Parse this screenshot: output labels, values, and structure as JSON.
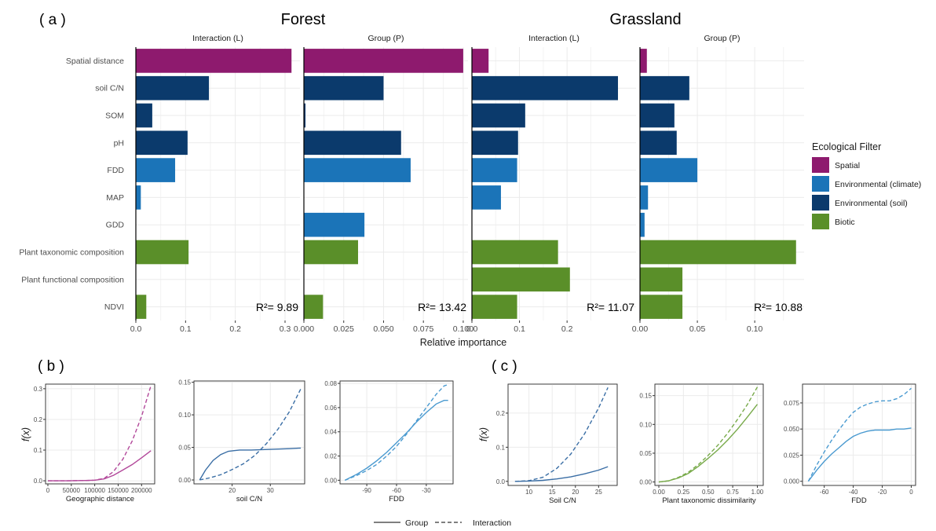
{
  "panel_a_label": "( a )",
  "panel_b_label": "( b )",
  "panel_c_label": "( c )",
  "chart_data": [
    {
      "type": "bar",
      "orientation": "horizontal",
      "ecosystem_titles": [
        "Forest",
        "Grassland"
      ],
      "categories": [
        "Spatial distance",
        "soil C/N",
        "SOM",
        "pH",
        "FDD",
        "MAP",
        "GDD",
        "Plant taxonomic composition",
        "Plant functional composition",
        "NDVI"
      ],
      "category_group": [
        "Spatial",
        "Environmental (soil)",
        "Environmental (soil)",
        "Environmental (soil)",
        "Environmental (climate)",
        "Environmental (climate)",
        "Environmental (climate)",
        "Biotic",
        "Biotic",
        "Biotic"
      ],
      "xlabel": "Relative importance",
      "legend": {
        "title": "Ecological Filter",
        "position": "right",
        "entries": [
          {
            "name": "Spatial",
            "color": "#8e1a6e"
          },
          {
            "name": "Environmental (climate)",
            "color": "#1b74b8"
          },
          {
            "name": "Environmental (soil)",
            "color": "#0b3a6c"
          },
          {
            "name": "Biotic",
            "color": "#5a8f29"
          }
        ]
      },
      "facets": [
        {
          "ecosystem": "Forest",
          "strip": "Interaction (L)",
          "r2": "R²= 9.89",
          "xlim": [
            0,
            0.33
          ],
          "ticks": [
            0,
            0.1,
            0.2,
            0.3
          ],
          "tick_labels": [
            "0.0",
            "0.1",
            "0.2",
            "0.3"
          ],
          "values": [
            0.313,
            0.147,
            0.033,
            0.104,
            0.079,
            0.01,
            0.0,
            0.106,
            0.0,
            0.021
          ]
        },
        {
          "ecosystem": "Forest",
          "strip": "Group (P)",
          "r2": "R²= 13.42",
          "xlim": [
            0,
            0.103
          ],
          "ticks": [
            0,
            0.025,
            0.05,
            0.075,
            0.1
          ],
          "tick_labels": [
            "0.000",
            "0.025",
            "0.050",
            "0.075",
            "0.100"
          ],
          "values": [
            0.1,
            0.05,
            0.001,
            0.061,
            0.067,
            0.0,
            0.038,
            0.034,
            0.0,
            0.012
          ]
        },
        {
          "ecosystem": "Grassland",
          "strip": "Interaction (L)",
          "r2": "R²= 11.07",
          "xlim": [
            0,
            0.345
          ],
          "ticks": [
            0,
            0.1,
            0.2
          ],
          "tick_labels": [
            "0.0",
            "0.1",
            "0.2"
          ],
          "values": [
            0.035,
            0.307,
            0.112,
            0.097,
            0.095,
            0.061,
            0.0,
            0.181,
            0.206,
            0.095
          ]
        },
        {
          "ecosystem": "Grassland",
          "strip": "Group (P)",
          "r2": "R²= 10.88",
          "xlim": [
            0,
            0.143
          ],
          "ticks": [
            0,
            0.05,
            0.1
          ],
          "tick_labels": [
            "0.00",
            "0.05",
            "0.10"
          ],
          "values": [
            0.006,
            0.043,
            0.03,
            0.032,
            0.05,
            0.007,
            0.004,
            0.136,
            0.037,
            0.037
          ]
        }
      ]
    },
    {
      "type": "line",
      "panel": "b",
      "ylabel": "f(x)",
      "legend": {
        "position": "bottom",
        "entries": [
          {
            "name": "Group",
            "linetype": "solid"
          },
          {
            "name": "Interaction",
            "linetype": "dashed"
          }
        ]
      },
      "plots": [
        {
          "xlabel": "Geographic distance",
          "color": "#b2489a",
          "xlim": [
            -5000,
            228000
          ],
          "ylim": [
            -0.01,
            0.315
          ],
          "xticks": [
            0,
            50000,
            100000,
            150000,
            200000
          ],
          "xtick_labels": [
            "0",
            "50000",
            "100000",
            "150000",
            "200000"
          ],
          "yticks": [
            0,
            0.1,
            0.2,
            0.3
          ],
          "ytick_labels": [
            "0.0",
            "0.1",
            "0.2",
            "0.3"
          ],
          "series": [
            {
              "name": "Group",
              "linetype": "solid",
              "x": [
                0,
                40000,
                80000,
                100000,
                120000,
                140000,
                160000,
                180000,
                200000,
                220000
              ],
              "y": [
                0,
                0,
                0.001,
                0.002,
                0.006,
                0.018,
                0.035,
                0.053,
                0.075,
                0.098
              ]
            },
            {
              "name": "Interaction",
              "linetype": "dashed",
              "x": [
                0,
                40000,
                80000,
                100000,
                120000,
                140000,
                160000,
                180000,
                200000,
                220000
              ],
              "y": [
                0,
                0,
                0.001,
                0.002,
                0.008,
                0.03,
                0.07,
                0.13,
                0.21,
                0.31
              ]
            }
          ]
        },
        {
          "xlabel": "soil C/N",
          "color": "#3a6ea5",
          "xlim": [
            10,
            39
          ],
          "ylim": [
            -0.006,
            0.152
          ],
          "xticks": [
            20,
            30
          ],
          "xtick_labels": [
            "20",
            "30"
          ],
          "yticks": [
            0,
            0.05,
            0.1,
            0.15
          ],
          "ytick_labels": [
            "0.00",
            "0.05",
            "0.10",
            "0.15"
          ],
          "series": [
            {
              "name": "Group",
              "linetype": "solid",
              "x": [
                11.5,
                13,
                15,
                17,
                19,
                20.5,
                22,
                25,
                30,
                35,
                38
              ],
              "y": [
                0,
                0.015,
                0.03,
                0.039,
                0.044,
                0.045,
                0.046,
                0.046,
                0.047,
                0.048,
                0.049
              ]
            },
            {
              "name": "Interaction",
              "linetype": "dashed",
              "x": [
                11.5,
                14,
                17,
                20,
                23,
                26,
                29,
                32,
                35,
                38
              ],
              "y": [
                0,
                0.003,
                0.008,
                0.016,
                0.025,
                0.038,
                0.056,
                0.078,
                0.105,
                0.14
              ]
            }
          ]
        },
        {
          "xlabel": "FDD",
          "color": "#4a9ad0",
          "xlim": [
            -117,
            -3
          ],
          "ylim": [
            -0.003,
            0.082
          ],
          "xticks": [
            -90,
            -60,
            -30
          ],
          "xtick_labels": [
            "-90",
            "-60",
            "-30"
          ],
          "yticks": [
            0,
            0.02,
            0.04,
            0.06,
            0.08
          ],
          "ytick_labels": [
            "0.00",
            "0.02",
            "0.04",
            "0.06",
            "0.08"
          ],
          "series": [
            {
              "name": "Group",
              "linetype": "solid",
              "x": [
                -112,
                -100,
                -90,
                -80,
                -70,
                -60,
                -50,
                -40,
                -30,
                -20,
                -12,
                -8
              ],
              "y": [
                0,
                0.005,
                0.01,
                0.016,
                0.023,
                0.031,
                0.039,
                0.048,
                0.056,
                0.063,
                0.066,
                0.066
              ]
            },
            {
              "name": "Interaction",
              "linetype": "dashed",
              "x": [
                -112,
                -100,
                -90,
                -80,
                -70,
                -60,
                -50,
                -40,
                -30,
                -20,
                -12,
                -8
              ],
              "y": [
                0,
                0.004,
                0.008,
                0.013,
                0.02,
                0.028,
                0.038,
                0.049,
                0.06,
                0.071,
                0.078,
                0.079
              ]
            }
          ]
        }
      ]
    },
    {
      "type": "line",
      "panel": "c",
      "ylabel": "f(x)",
      "plots": [
        {
          "xlabel": "Soil C/N",
          "color": "#3a6ea5",
          "xlim": [
            5.5,
            29
          ],
          "ylim": [
            -0.012,
            0.285
          ],
          "xticks": [
            10,
            15,
            20,
            25
          ],
          "xtick_labels": [
            "10",
            "15",
            "20",
            "25"
          ],
          "yticks": [
            0,
            0.1,
            0.2
          ],
          "ytick_labels": [
            "0.0",
            "0.1",
            "0.2"
          ],
          "series": [
            {
              "name": "Group",
              "linetype": "solid",
              "x": [
                7,
                10,
                13,
                16,
                19,
                22,
                25,
                27
              ],
              "y": [
                0,
                0.001,
                0.003,
                0.007,
                0.013,
                0.022,
                0.033,
                0.043
              ]
            },
            {
              "name": "Interaction",
              "linetype": "dashed",
              "x": [
                7,
                10,
                13,
                16,
                19,
                22,
                25,
                27
              ],
              "y": [
                0,
                0.002,
                0.012,
                0.038,
                0.08,
                0.14,
                0.215,
                0.275
              ]
            }
          ]
        },
        {
          "xlabel": "Plant taxonomic dissimilarity",
          "color": "#78aa4a",
          "xlim": [
            -0.04,
            1.06
          ],
          "ylim": [
            -0.006,
            0.17
          ],
          "xticks": [
            0,
            0.25,
            0.5,
            0.75,
            1
          ],
          "xtick_labels": [
            "0.00",
            "0.25",
            "0.50",
            "0.75",
            "1.00"
          ],
          "yticks": [
            0,
            0.05,
            0.1,
            0.15
          ],
          "ytick_labels": [
            "0.00",
            "0.05",
            "0.10",
            "0.15"
          ],
          "series": [
            {
              "name": "Group",
              "linetype": "solid",
              "x": [
                0,
                0.1,
                0.2,
                0.3,
                0.4,
                0.5,
                0.6,
                0.7,
                0.8,
                0.9,
                1.0
              ],
              "y": [
                0,
                0.002,
                0.007,
                0.015,
                0.027,
                0.041,
                0.056,
                0.073,
                0.092,
                0.113,
                0.135
              ]
            },
            {
              "name": "Interaction",
              "linetype": "dashed",
              "x": [
                0,
                0.1,
                0.2,
                0.3,
                0.4,
                0.5,
                0.6,
                0.7,
                0.8,
                0.9,
                1.0
              ],
              "y": [
                0,
                0.002,
                0.008,
                0.017,
                0.03,
                0.046,
                0.064,
                0.085,
                0.109,
                0.135,
                0.165
              ]
            }
          ]
        },
        {
          "xlabel": "FDD",
          "color": "#4a9ad0",
          "xlim": [
            -75,
            3
          ],
          "ylim": [
            -0.004,
            0.093
          ],
          "xticks": [
            -60,
            -40,
            -20,
            0
          ],
          "xtick_labels": [
            "-60",
            "-40",
            "-20",
            "0"
          ],
          "yticks": [
            0,
            0.025,
            0.05,
            0.075
          ],
          "ytick_labels": [
            "0.000",
            "0.025",
            "0.050",
            "0.075"
          ],
          "series": [
            {
              "name": "Group",
              "linetype": "solid",
              "x": [
                -71,
                -65,
                -60,
                -55,
                -50,
                -45,
                -40,
                -35,
                -30,
                -25,
                -20,
                -15,
                -10,
                -5,
                0
              ],
              "y": [
                0,
                0.011,
                0.019,
                0.026,
                0.032,
                0.038,
                0.043,
                0.046,
                0.048,
                0.049,
                0.049,
                0.049,
                0.05,
                0.05,
                0.051
              ]
            },
            {
              "name": "Interaction",
              "linetype": "dashed",
              "x": [
                -71,
                -65,
                -60,
                -55,
                -50,
                -45,
                -40,
                -35,
                -30,
                -25,
                -20,
                -15,
                -10,
                -5,
                0
              ],
              "y": [
                0,
                0.016,
                0.028,
                0.039,
                0.049,
                0.058,
                0.066,
                0.071,
                0.074,
                0.076,
                0.077,
                0.077,
                0.079,
                0.083,
                0.089
              ]
            }
          ]
        }
      ]
    }
  ]
}
